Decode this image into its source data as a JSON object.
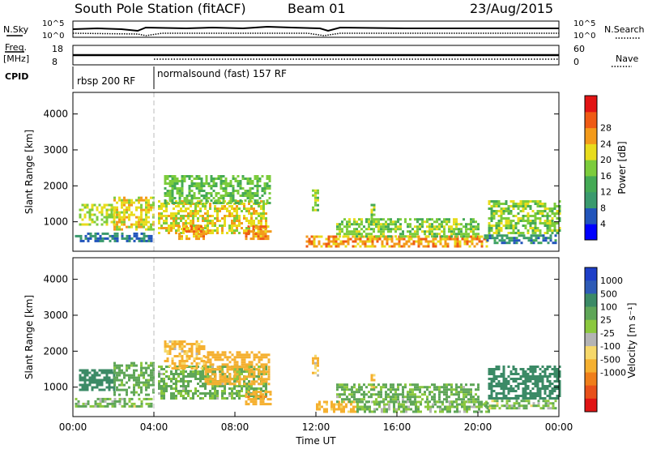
{
  "header": {
    "station": "South Pole Station (fitACF)",
    "beam": "Beam 01",
    "date": "23/Aug/2015"
  },
  "top_panels": {
    "nsky_label": "N.Sky",
    "nsearch_label": "N.Search",
    "freq_label": "Freq.",
    "freq_unit": "[MHz]",
    "nave_label": "Nave",
    "cpid_label": "CPID",
    "noise_ticks_left": [
      "10^5",
      "10^0"
    ],
    "noise_ticks_right": [
      "10^5",
      "10^0"
    ],
    "freq_ticks": [
      "18",
      "8"
    ],
    "nave_ticks": [
      "60",
      "0"
    ],
    "cpid_segments": [
      {
        "label": "rbsp 200 RF",
        "start_hour": 0.0,
        "end_hour": 4.0
      },
      {
        "label": "normalsound (fast) 157 RF",
        "start_hour": 4.0,
        "end_hour": 24.0
      }
    ]
  },
  "chart_data": [
    {
      "type": "heatmap",
      "name": "power",
      "xlabel": "",
      "ylabel": "Slant Range [km]",
      "xlim": [
        0,
        24
      ],
      "ylim": [
        180,
        4600
      ],
      "yticks": [
        "1000",
        "2000",
        "3000",
        "4000"
      ],
      "colorbar": {
        "label": "Power [dB]",
        "ticks": [
          "4",
          "8",
          "12",
          "16",
          "20",
          "24",
          "28"
        ],
        "colors": [
          "#0000ff",
          "#2255bb",
          "#3a9a6e",
          "#44aa55",
          "#7ccc3c",
          "#e8dc1c",
          "#f39a1a",
          "#ef5a14",
          "#e21414"
        ]
      },
      "echo_regions": [
        {
          "t0": 0.1,
          "t1": 3.9,
          "r0": 450,
          "r1": 700,
          "value": 8
        },
        {
          "t0": 0.3,
          "t1": 2.0,
          "r0": 900,
          "r1": 1500,
          "value": 20
        },
        {
          "t0": 2.0,
          "t1": 4.0,
          "r0": 800,
          "r1": 1700,
          "value": 22
        },
        {
          "t0": 4.2,
          "t1": 9.5,
          "r0": 700,
          "r1": 1600,
          "value": 22
        },
        {
          "t0": 5.2,
          "t1": 6.6,
          "r0": 500,
          "r1": 900,
          "value": 26
        },
        {
          "t0": 4.5,
          "t1": 9.7,
          "r0": 1500,
          "r1": 2300,
          "value": 16
        },
        {
          "t0": 8.5,
          "t1": 9.8,
          "r0": 550,
          "r1": 900,
          "value": 27
        },
        {
          "t0": 11.8,
          "t1": 12.1,
          "r0": 1300,
          "r1": 1900,
          "value": 18
        },
        {
          "t0": 14.7,
          "t1": 14.9,
          "r0": 900,
          "r1": 1500,
          "value": 18
        },
        {
          "t0": 11.5,
          "t1": 20.5,
          "r0": 300,
          "r1": 620,
          "value": 26
        },
        {
          "t0": 13.0,
          "t1": 20.0,
          "r0": 600,
          "r1": 1100,
          "value": 18
        },
        {
          "t0": 20.5,
          "t1": 24.0,
          "r0": 700,
          "r1": 1600,
          "value": 18
        },
        {
          "t0": 20.3,
          "t1": 23.8,
          "r0": 400,
          "r1": 650,
          "value": 10
        }
      ]
    },
    {
      "type": "heatmap",
      "name": "velocity",
      "xlabel": "Time UT",
      "ylabel": "Slant Range [km]",
      "xlim": [
        0,
        24
      ],
      "ylim": [
        180,
        4600
      ],
      "xticks": [
        "00:00",
        "04:00",
        "08:00",
        "12:00",
        "16:00",
        "20:00",
        "00:00"
      ],
      "yticks": [
        "1000",
        "2000",
        "3000",
        "4000"
      ],
      "colorbar": {
        "label": "Velocity [m s⁻¹]",
        "ticks": [
          "1000",
          "500",
          "100",
          "25",
          "-25",
          "-100",
          "-500",
          "-1000"
        ],
        "colors": [
          "#1e3fc8",
          "#2e5bb6",
          "#3b8a66",
          "#5fa658",
          "#8bc83e",
          "#b4b4b4",
          "#f6d86a",
          "#f5b030",
          "#ef7e1a",
          "#e8501a",
          "#e01414"
        ]
      },
      "echo_regions": [
        {
          "t0": 0.1,
          "t1": 3.9,
          "r0": 450,
          "r1": 700,
          "value": 100
        },
        {
          "t0": 0.3,
          "t1": 2.0,
          "r0": 900,
          "r1": 1500,
          "value": 800
        },
        {
          "t0": 2.0,
          "t1": 4.0,
          "r0": 800,
          "r1": 1700,
          "value": 200
        },
        {
          "t0": 4.2,
          "t1": 9.5,
          "r0": 700,
          "r1": 1600,
          "value": 150
        },
        {
          "t0": 6.5,
          "t1": 9.7,
          "r0": 1100,
          "r1": 2000,
          "value": -300
        },
        {
          "t0": 4.5,
          "t1": 6.5,
          "r0": 1500,
          "r1": 2300,
          "value": -150
        },
        {
          "t0": 8.5,
          "t1": 9.8,
          "r0": 550,
          "r1": 900,
          "value": -400
        },
        {
          "t0": 11.8,
          "t1": 12.1,
          "r0": 1300,
          "r1": 1900,
          "value": -120
        },
        {
          "t0": 14.7,
          "t1": 14.9,
          "r0": 900,
          "r1": 1500,
          "value": -120
        },
        {
          "t0": 12.0,
          "t1": 14.0,
          "r0": 300,
          "r1": 620,
          "value": -200
        },
        {
          "t0": 14.0,
          "t1": 20.5,
          "r0": 300,
          "r1": 620,
          "value": 120
        },
        {
          "t0": 13.0,
          "t1": 20.0,
          "r0": 600,
          "r1": 1100,
          "value": 150
        },
        {
          "t0": 20.5,
          "t1": 24.0,
          "r0": 700,
          "r1": 1600,
          "value": 700
        },
        {
          "t0": 20.3,
          "t1": 23.8,
          "r0": 400,
          "r1": 650,
          "value": 100
        }
      ]
    }
  ]
}
